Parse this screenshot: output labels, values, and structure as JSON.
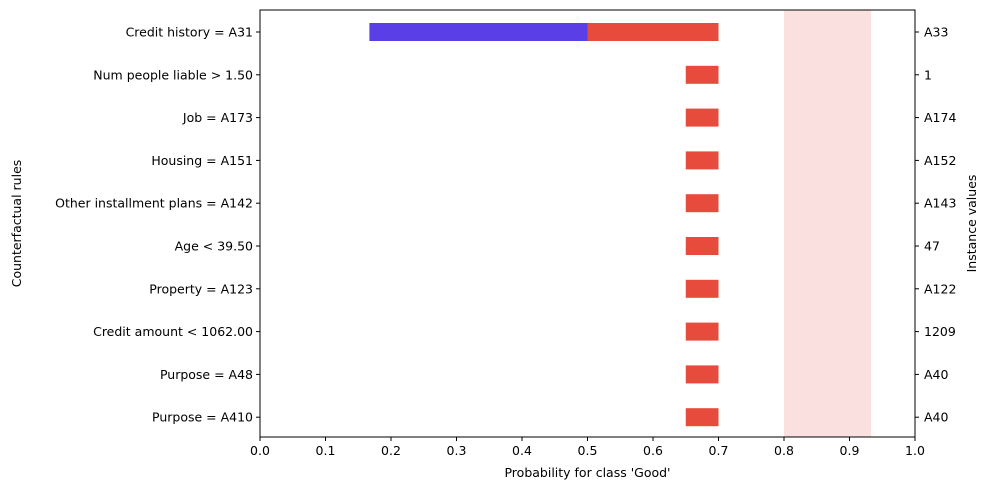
{
  "chart_data": {
    "type": "bar",
    "orientation": "horizontal",
    "xlabel": "Probability for class 'Good'",
    "ylabel": "Counterfactual rules",
    "y2label": "Instance values",
    "xlim": [
      0.0,
      1.0
    ],
    "xticks": [
      "0.0",
      "0.1",
      "0.2",
      "0.3",
      "0.4",
      "0.5",
      "0.6",
      "0.7",
      "0.8",
      "0.9",
      "1.0"
    ],
    "grid": false,
    "shaded_region": {
      "x_range": [
        0.8,
        0.933
      ],
      "color": "#fae0df"
    },
    "rules": [
      {
        "label": "Credit history = A31",
        "instance_value": "A33",
        "blue_range": [
          0.167,
          0.5
        ],
        "red_range": [
          0.5,
          0.7
        ]
      },
      {
        "label": "Num people liable > 1.50",
        "instance_value": "1",
        "blue_range": null,
        "red_range": [
          0.65,
          0.7
        ]
      },
      {
        "label": "Job = A173",
        "instance_value": "A174",
        "blue_range": null,
        "red_range": [
          0.65,
          0.7
        ]
      },
      {
        "label": "Housing = A151",
        "instance_value": "A152",
        "blue_range": null,
        "red_range": [
          0.65,
          0.7
        ]
      },
      {
        "label": "Other installment plans = A142",
        "instance_value": "A143",
        "blue_range": null,
        "red_range": [
          0.65,
          0.7
        ]
      },
      {
        "label": "Age < 39.50",
        "instance_value": "47",
        "blue_range": null,
        "red_range": [
          0.65,
          0.7
        ]
      },
      {
        "label": "Property = A123",
        "instance_value": "A122",
        "blue_range": null,
        "red_range": [
          0.65,
          0.7
        ]
      },
      {
        "label": "Credit amount < 1062.00",
        "instance_value": "1209",
        "blue_range": null,
        "red_range": [
          0.65,
          0.7
        ]
      },
      {
        "label": "Purpose = A48",
        "instance_value": "A40",
        "blue_range": null,
        "red_range": [
          0.65,
          0.7
        ]
      },
      {
        "label": "Purpose = A410",
        "instance_value": "A40",
        "blue_range": null,
        "red_range": [
          0.65,
          0.7
        ]
      }
    ],
    "colors": {
      "red": "#e64b3c",
      "blue": "#5a3fe6",
      "shade": "#fae0df"
    }
  }
}
